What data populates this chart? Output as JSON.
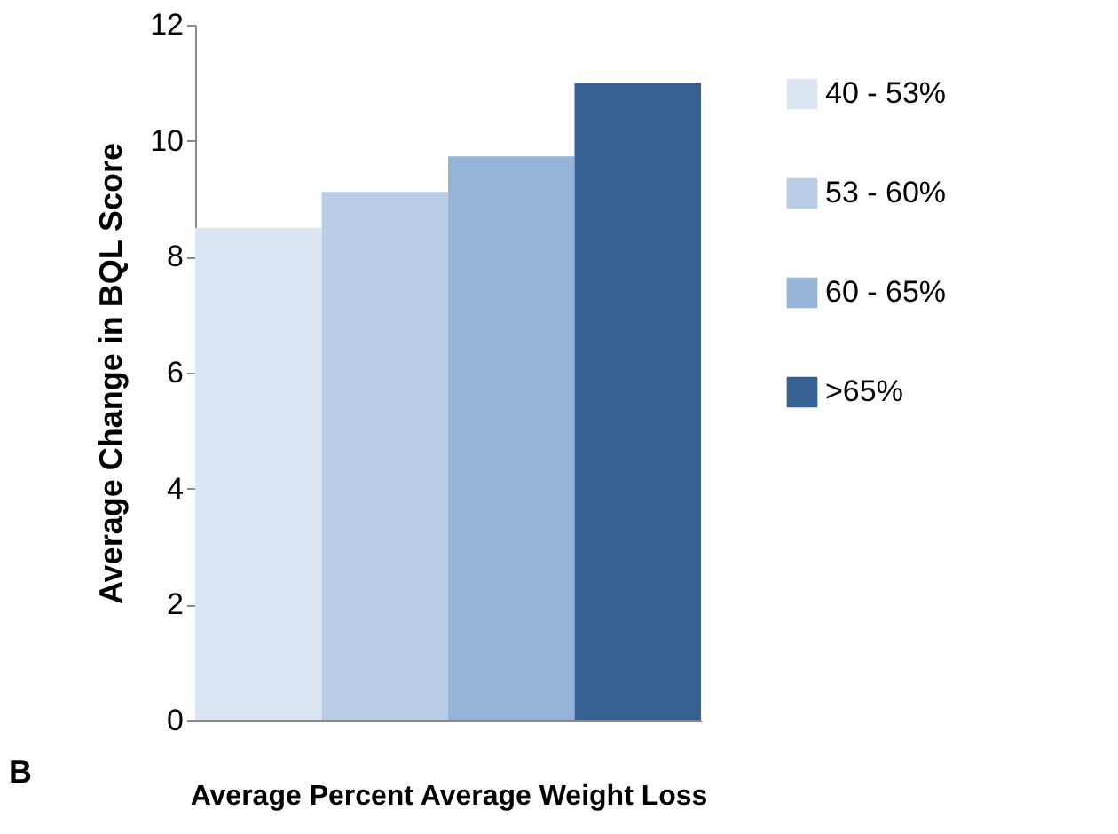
{
  "chart_data": {
    "type": "bar",
    "categories": [
      null
    ],
    "series": [
      {
        "name": "40 - 53%",
        "color": "#dce6f2",
        "values": [
          8.5
        ]
      },
      {
        "name": "53 - 60%",
        "color": "#b9cde5",
        "values": [
          9.12
        ]
      },
      {
        "name": "60 - 65%",
        "color": "#95b3d7",
        "values": [
          9.73
        ]
      },
      {
        "name": ">65%",
        "color": "#366092",
        "values": [
          11.0
        ]
      }
    ],
    "xlabel": "Average Percent Average Weight Loss",
    "ylabel": "Average Change in BQL Score",
    "ylim": [
      0,
      12
    ],
    "yticks": [
      0,
      2,
      4,
      6,
      8,
      10,
      12
    ],
    "grid": false,
    "legend": "right",
    "annotations": [
      "B"
    ]
  }
}
